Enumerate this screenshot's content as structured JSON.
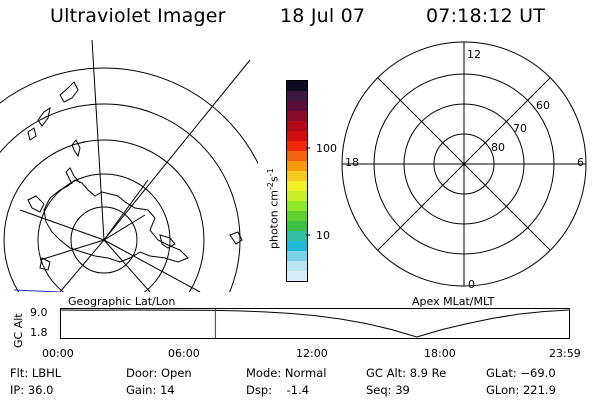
{
  "header": {
    "title": "Ultraviolet Imager",
    "date": "18 Jul 07",
    "time": "07:18:12 UT"
  },
  "colorbar": {
    "label": "photon cm",
    "label_sup1": "-2",
    "label_mid": "s",
    "label_sup2": "-1",
    "ticks": [
      "100",
      "10"
    ],
    "colors": [
      "#0b0b22",
      "#3a1a40",
      "#5a0b3a",
      "#8a0a2a",
      "#b00a1a",
      "#d00e0e",
      "#ee2a0a",
      "#f0620a",
      "#f59a08",
      "#f5c820",
      "#f2ee2a",
      "#c7ee28",
      "#90e828",
      "#5ed02a",
      "#3cc044",
      "#30c0a0",
      "#20b8d8",
      "#7ad2ea",
      "#b8e6f0",
      "#d8eef4"
    ]
  },
  "polar_labels": {
    "mlt": [
      "12",
      "18",
      "6",
      "0"
    ],
    "mlat": [
      "60",
      "70",
      "80"
    ]
  },
  "map_labels": {
    "left": "Geographic Lat/Lon",
    "right": "Apex MLat/MLT"
  },
  "altitude_plot": {
    "ylabel": "GC Alt",
    "y_ticks": [
      "9.0",
      "1.8"
    ],
    "x_ticks": [
      "00:00",
      "06:00",
      "12:00",
      "18:00",
      "23:59"
    ],
    "marker_time_fraction": 0.3043,
    "curve": [
      {
        "t": 0.0,
        "alt": 9.0
      },
      {
        "t": 0.05,
        "alt": 8.93
      },
      {
        "t": 0.1,
        "alt": 8.98
      },
      {
        "t": 0.15,
        "alt": 9.0
      },
      {
        "t": 0.2,
        "alt": 8.98
      },
      {
        "t": 0.25,
        "alt": 8.95
      },
      {
        "t": 0.3,
        "alt": 8.9
      },
      {
        "t": 0.35,
        "alt": 8.75
      },
      {
        "t": 0.4,
        "alt": 8.5
      },
      {
        "t": 0.45,
        "alt": 8.1
      },
      {
        "t": 0.5,
        "alt": 7.5
      },
      {
        "t": 0.55,
        "alt": 6.6
      },
      {
        "t": 0.6,
        "alt": 5.4
      },
      {
        "t": 0.65,
        "alt": 3.8
      },
      {
        "t": 0.68,
        "alt": 2.6
      },
      {
        "t": 0.7,
        "alt": 1.8
      },
      {
        "t": 0.72,
        "alt": 2.6
      },
      {
        "t": 0.75,
        "alt": 3.8
      },
      {
        "t": 0.8,
        "alt": 5.4
      },
      {
        "t": 0.85,
        "alt": 6.8
      },
      {
        "t": 0.9,
        "alt": 7.9
      },
      {
        "t": 0.95,
        "alt": 8.6
      },
      {
        "t": 1.0,
        "alt": 9.0
      }
    ]
  },
  "info": {
    "flt": "Flt: LBHL",
    "ip": "IP: 36.0",
    "door": "Door: Open",
    "gain": "Gain: 14",
    "mode": "Mode: Normal",
    "dsp": "Dsp:    -1.4",
    "gcalt": "GC Alt: 8.9 Re",
    "seq": "Seq: 39",
    "glat": "GLat: −69.0",
    "glon": "GLon: 221.9"
  },
  "colors": {
    "marker": "#cc0000",
    "coast": "#000000"
  }
}
